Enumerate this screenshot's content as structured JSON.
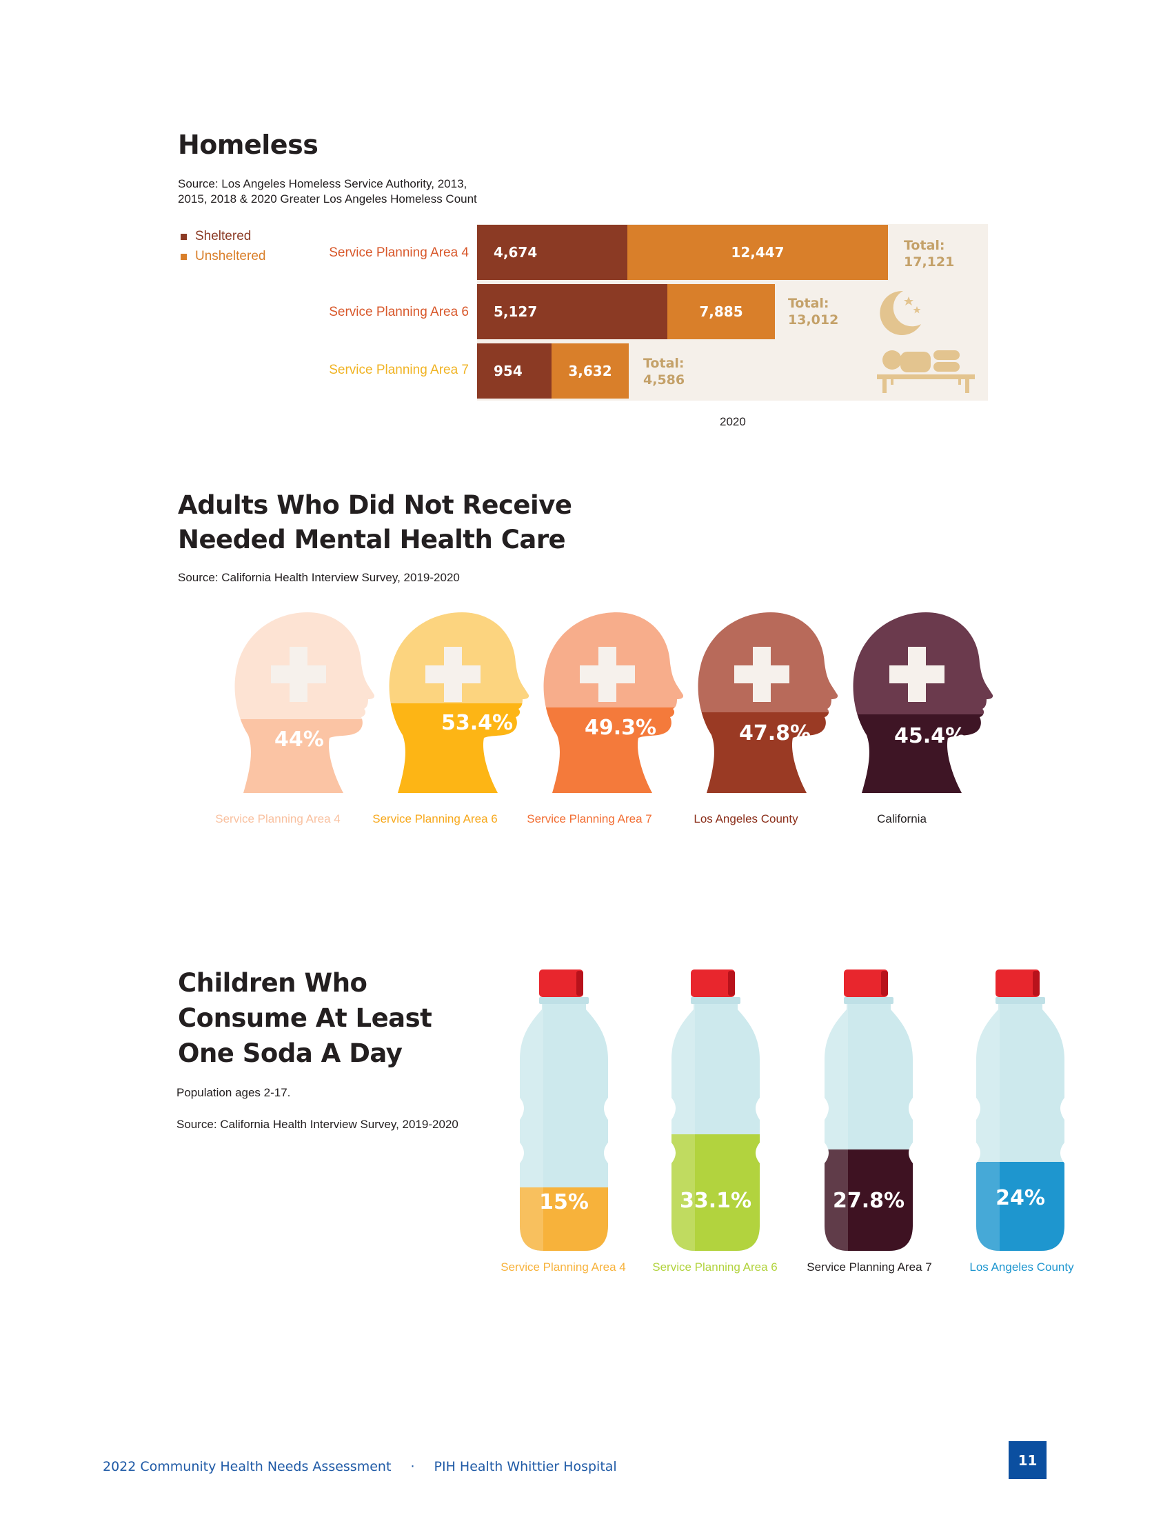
{
  "homeless": {
    "title": "Homeless",
    "source": [
      "Source:  Los Angeles Homeless Service Authority, 2013,",
      "2015, 2018 & 2020 Greater Los Angeles Homeless Count"
    ],
    "legend": [
      {
        "label": "Sheltered",
        "color": "#8b3a24"
      },
      {
        "label": "Unsheltered",
        "color": "#d97f2a"
      }
    ],
    "year": "2020",
    "rows": [
      {
        "label": "Service Planning Area 4",
        "label_color": "#d8582b",
        "sheltered": "4,674",
        "unsheltered": "12,447",
        "total_label": "Total:",
        "total": "17,121"
      },
      {
        "label": "Service Planning Area 6",
        "label_color": "#d8582b",
        "sheltered": "5,127",
        "unsheltered": "7,885",
        "total_label": "Total:",
        "total": "13,012"
      },
      {
        "label": "Service Planning Area 7",
        "label_color": "#f0b323",
        "sheltered": "954",
        "unsheltered": "3,632",
        "total_label": "Total:",
        "total": "4,586"
      }
    ],
    "icons": [
      "moon-stars-icon",
      "person-sleeping-on-bench-icon"
    ]
  },
  "mental_health": {
    "title": [
      "Adults Who Did Not Receive",
      "Needed Mental Health Care"
    ],
    "source": "Source:  California Health Interview Survey, 2019-2020",
    "items": [
      {
        "label": "Service Planning Area 4",
        "value": "44%",
        "top": "#fde3d3",
        "bottom": "#fbc4a4",
        "label_color": "#f9c1a0"
      },
      {
        "label": "Service Planning Area 6",
        "value": "53.4%",
        "top": "#fcd47f",
        "bottom": "#fdb515",
        "label_color": "#f7a81b"
      },
      {
        "label": "Service Planning Area 7",
        "value": "49.3%",
        "top": "#f7ad8b",
        "bottom": "#f47a3b",
        "label_color": "#f26d32"
      },
      {
        "label": "Los Angeles County",
        "value": "47.8%",
        "top": "#b86a5a",
        "bottom": "#9a3a24",
        "label_color": "#8b2e1a"
      },
      {
        "label": "California",
        "value": "45.4%",
        "top": "#6b3a4d",
        "bottom": "#3e1525",
        "label_color": "#231f20"
      }
    ]
  },
  "soda": {
    "title": [
      "Children Who",
      "Consume At Least",
      "One Soda A Day"
    ],
    "population": "Population ages 2-17.",
    "source": "Source: California Health Interview Survey, 2019-2020",
    "items": [
      {
        "label": "Service Planning Area 4",
        "value": "15%",
        "fill": "#f7b23b",
        "label_color": "#f7b23b"
      },
      {
        "label": "Service Planning Area 6",
        "value": "33.1%",
        "fill": "#b2d33e",
        "label_color": "#b2d33e"
      },
      {
        "label": "Service Planning Area 7",
        "value": "27.8%",
        "fill": "#3e1222",
        "label_color": "#231f20"
      },
      {
        "label": "Los Angeles County",
        "value": "24%",
        "fill": "#1e96cf",
        "label_color": "#1e96cf"
      }
    ]
  },
  "footer": {
    "left": "2022 Community Health Needs Assessment",
    "separator": "·",
    "right": "PIH Health Whittier Hospital",
    "page": "11"
  }
}
